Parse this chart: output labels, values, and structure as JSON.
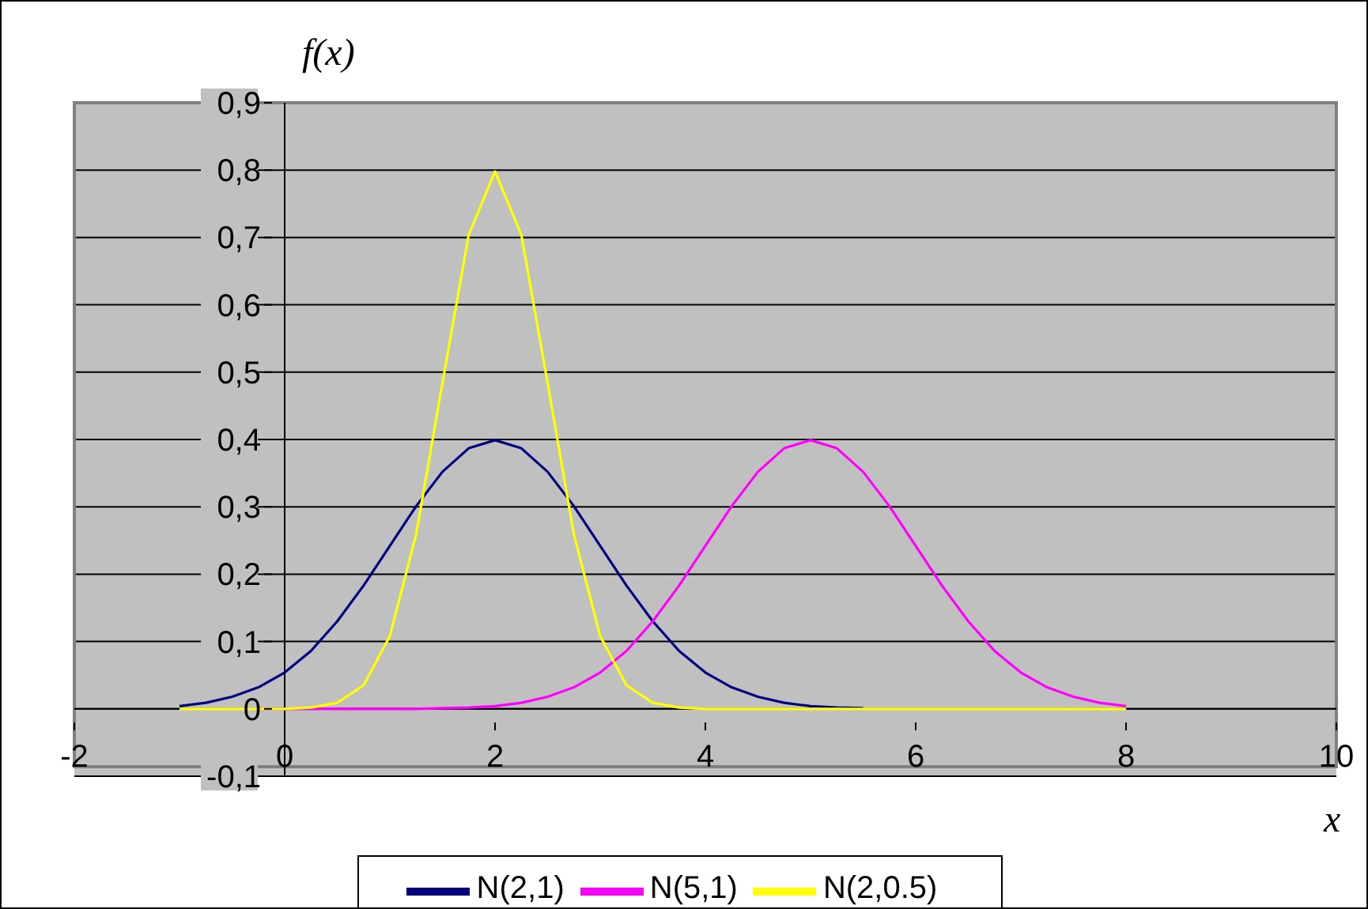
{
  "chart_data": {
    "type": "line",
    "xlabel": "x",
    "ylabel": "f(x)",
    "x": [
      -1,
      -0.75,
      -0.5,
      -0.25,
      0,
      0.25,
      0.5,
      0.75,
      1,
      1.25,
      1.5,
      1.75,
      2,
      2.25,
      2.5,
      2.75,
      3,
      3.25,
      3.5,
      3.75,
      4,
      4.25,
      4.5,
      4.75,
      5,
      5.25,
      5.5,
      5.75,
      6,
      6.25,
      6.5,
      6.75,
      7,
      7.25,
      7.5,
      7.75,
      8
    ],
    "series": [
      {
        "name": "N(2,1)",
        "color": "#000080",
        "values": [
          0.004,
          0.009,
          0.018,
          0.032,
          0.054,
          0.086,
          0.13,
          0.183,
          0.242,
          0.301,
          0.352,
          0.387,
          0.399,
          0.387,
          0.352,
          0.301,
          0.242,
          0.183,
          0.13,
          0.086,
          0.054,
          0.032,
          0.018,
          0.009,
          0.004,
          0.002,
          0.001,
          null,
          null,
          null,
          null,
          null,
          null,
          null,
          null,
          null,
          null
        ]
      },
      {
        "name": "N(5,1)",
        "color": "#ff00ff",
        "values": [
          null,
          null,
          null,
          0,
          0,
          0,
          0,
          0,
          0,
          0,
          0.001,
          0.002,
          0.004,
          0.009,
          0.018,
          0.032,
          0.054,
          0.086,
          0.13,
          0.183,
          0.242,
          0.301,
          0.352,
          0.387,
          0.399,
          0.387,
          0.352,
          0.301,
          0.242,
          0.183,
          0.13,
          0.086,
          0.054,
          0.032,
          0.018,
          0.009,
          0.004
        ]
      },
      {
        "name": "N(2,0.5)",
        "color": "#ffff00",
        "values": [
          0,
          0,
          0,
          0,
          0,
          0.002,
          0.009,
          0.035,
          0.108,
          0.259,
          0.484,
          0.704,
          0.798,
          0.704,
          0.484,
          0.259,
          0.108,
          0.035,
          0.009,
          0.002,
          0,
          0,
          0,
          0,
          0,
          0,
          0,
          0,
          0,
          0,
          0,
          0,
          0,
          0,
          0,
          0,
          0
        ]
      }
    ],
    "xlim": [
      -2,
      10
    ],
    "xticks": [
      -2,
      0,
      2,
      4,
      6,
      8,
      10
    ],
    "ylim": [
      -0.1,
      0.9
    ],
    "yticks": [
      {
        "value": -0.1,
        "label": "-0,1"
      },
      0,
      {
        "value": 0.1,
        "label": "0,1"
      },
      {
        "value": 0.2,
        "label": "0,2"
      },
      {
        "value": 0.3,
        "label": "0,3"
      },
      {
        "value": 0.4,
        "label": "0,4"
      },
      {
        "value": 0.5,
        "label": "0,5"
      },
      {
        "value": 0.6,
        "label": "0,6"
      },
      {
        "value": 0.7,
        "label": "0,7"
      },
      {
        "value": 0.8,
        "label": "0,8"
      },
      {
        "value": 0.9,
        "label": "0,9"
      }
    ],
    "grid": "y",
    "legend": "bottom"
  }
}
